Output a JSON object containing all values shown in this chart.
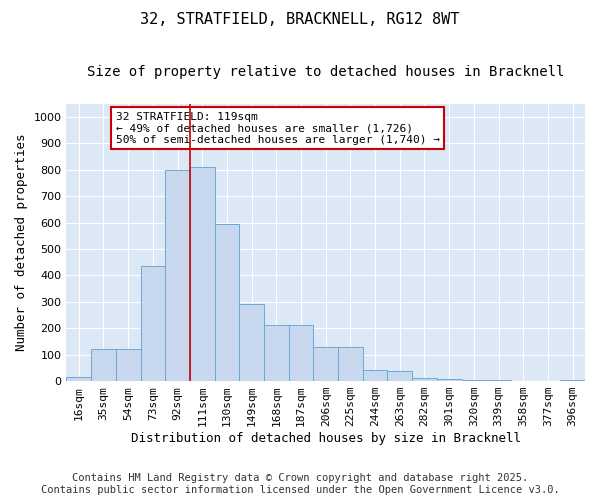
{
  "title_line1": "32, STRATFIELD, BRACKNELL, RG12 8WT",
  "title_line2": "Size of property relative to detached houses in Bracknell",
  "xlabel": "Distribution of detached houses by size in Bracknell",
  "ylabel": "Number of detached properties",
  "categories": [
    "16sqm",
    "35sqm",
    "54sqm",
    "73sqm",
    "92sqm",
    "111sqm",
    "130sqm",
    "149sqm",
    "168sqm",
    "187sqm",
    "206sqm",
    "225sqm",
    "244sqm",
    "263sqm",
    "282sqm",
    "301sqm",
    "320sqm",
    "339sqm",
    "358sqm",
    "377sqm",
    "396sqm"
  ],
  "values": [
    15,
    120,
    120,
    435,
    800,
    810,
    595,
    290,
    213,
    213,
    130,
    130,
    42,
    38,
    12,
    8,
    5,
    3,
    2,
    1,
    5
  ],
  "bar_color": "#c8d9ef",
  "bar_edge_color": "#6aaad4",
  "vline_color": "#cc0000",
  "vline_x": 4.5,
  "annotation_text": "32 STRATFIELD: 119sqm\n← 49% of detached houses are smaller (1,726)\n50% of semi-detached houses are larger (1,740) →",
  "annotation_box_color": "#ffffff",
  "annotation_box_edge_color": "#cc0000",
  "ylim": [
    0,
    1050
  ],
  "yticks": [
    0,
    100,
    200,
    300,
    400,
    500,
    600,
    700,
    800,
    900,
    1000
  ],
  "plot_bg_color": "#dce8f5",
  "fig_bg_color": "#ffffff",
  "grid_color": "#ffffff",
  "footer_line1": "Contains HM Land Registry data © Crown copyright and database right 2025.",
  "footer_line2": "Contains public sector information licensed under the Open Government Licence v3.0.",
  "title_fontsize": 11,
  "subtitle_fontsize": 10,
  "tick_fontsize": 8,
  "label_fontsize": 9,
  "annotation_fontsize": 8,
  "footer_fontsize": 7.5
}
